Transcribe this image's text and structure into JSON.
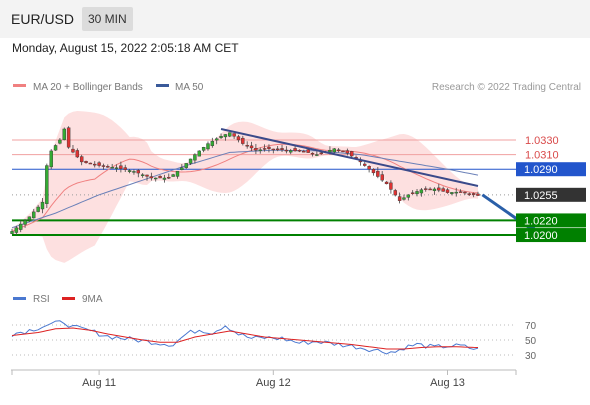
{
  "header": {
    "pair": "EUR/USD",
    "timeframe": "30 MIN"
  },
  "timestamp": "Monday, August 15, 2022 2:05:18 AM CET",
  "legend": {
    "items": [
      {
        "label": "MA 20 + Bollinger Bands",
        "color": "#f08080"
      },
      {
        "label": "MA 50",
        "color": "#3a5a9a"
      }
    ],
    "copyright": "Research © 2022 Trading Central"
  },
  "rsi_legend": {
    "items": [
      {
        "label": "RSI",
        "color": "#4a78d0"
      },
      {
        "label": "9MA",
        "color": "#dd2222"
      }
    ]
  },
  "colors": {
    "resistance": "#d94a4a",
    "pivot": "#2255cc",
    "support": "#008000",
    "current": "#333333",
    "trendline": "#3a4a8a",
    "band_fill": "#fcd8d8"
  },
  "chart_data": {
    "type": "line",
    "title": "EUR/USD",
    "x_ticks": [
      "Aug 11",
      "Aug 12",
      "Aug 13"
    ],
    "x_tick_index": [
      20,
      60,
      100
    ],
    "n_points": 108,
    "ylim": [
      1.017,
      1.036
    ],
    "levels": [
      {
        "value": 1.033,
        "label": "1.0330",
        "kind": "resistance"
      },
      {
        "value": 1.031,
        "label": "1.0310",
        "kind": "resistance"
      },
      {
        "value": 1.029,
        "label": "1.0290",
        "kind": "pivot"
      },
      {
        "value": 1.0255,
        "label": "1.0255",
        "kind": "current"
      },
      {
        "value": 1.022,
        "label": "1.0220",
        "kind": "support"
      },
      {
        "value": 1.02,
        "label": "1.0200",
        "kind": "support"
      }
    ],
    "price_anchors": [
      [
        0,
        1.0205
      ],
      [
        4,
        1.0225
      ],
      [
        7,
        1.0245
      ],
      [
        8,
        1.0295
      ],
      [
        9,
        1.0315
      ],
      [
        11,
        1.033
      ],
      [
        12,
        1.0345
      ],
      [
        13,
        1.032
      ],
      [
        16,
        1.03
      ],
      [
        20,
        1.0295
      ],
      [
        24,
        1.0292
      ],
      [
        28,
        1.0287
      ],
      [
        32,
        1.0278
      ],
      [
        36,
        1.0278
      ],
      [
        39,
        1.0292
      ],
      [
        42,
        1.031
      ],
      [
        45,
        1.0325
      ],
      [
        48,
        1.0335
      ],
      [
        50,
        1.034
      ],
      [
        53,
        1.0325
      ],
      [
        56,
        1.0316
      ],
      [
        59,
        1.0318
      ],
      [
        63,
        1.0316
      ],
      [
        67,
        1.0314
      ],
      [
        70,
        1.031
      ],
      [
        74,
        1.0318
      ],
      [
        77,
        1.0312
      ],
      [
        80,
        1.03
      ],
      [
        83,
        1.0285
      ],
      [
        86,
        1.027
      ],
      [
        89,
        1.0247
      ],
      [
        91,
        1.0255
      ],
      [
        94,
        1.0262
      ],
      [
        97,
        1.0263
      ],
      [
        100,
        1.0258
      ],
      [
        103,
        1.0259
      ],
      [
        107,
        1.0254
      ]
    ],
    "ma50_anchors": [
      [
        0,
        1.021
      ],
      [
        10,
        1.023
      ],
      [
        20,
        1.0255
      ],
      [
        30,
        1.0275
      ],
      [
        40,
        1.0295
      ],
      [
        50,
        1.0313
      ],
      [
        60,
        1.0316
      ],
      [
        70,
        1.0315
      ],
      [
        80,
        1.031
      ],
      [
        90,
        1.03
      ],
      [
        100,
        1.029
      ],
      [
        107,
        1.0282
      ]
    ],
    "trendline": {
      "from": [
        48,
        1.0345
      ],
      "to": [
        107,
        1.0267
      ]
    },
    "projection": {
      "from": [
        108,
        1.0255
      ],
      "to": [
        120,
        1.0205
      ]
    },
    "rsi": {
      "levels": [
        70,
        50,
        30
      ],
      "ylim": [
        18,
        82
      ],
      "rsi_anchors": [
        [
          0,
          58
        ],
        [
          4,
          63
        ],
        [
          8,
          70
        ],
        [
          10,
          72
        ],
        [
          12,
          74
        ],
        [
          14,
          67
        ],
        [
          18,
          62
        ],
        [
          22,
          55
        ],
        [
          26,
          52
        ],
        [
          30,
          49
        ],
        [
          34,
          46
        ],
        [
          37,
          44
        ],
        [
          40,
          58
        ],
        [
          43,
          64
        ],
        [
          46,
          60
        ],
        [
          49,
          70
        ],
        [
          52,
          58
        ],
        [
          55,
          52
        ],
        [
          58,
          53
        ],
        [
          62,
          52
        ],
        [
          66,
          46
        ],
        [
          70,
          48
        ],
        [
          74,
          45
        ],
        [
          78,
          42
        ],
        [
          82,
          38
        ],
        [
          85,
          35
        ],
        [
          88,
          34
        ],
        [
          90,
          40
        ],
        [
          93,
          44
        ],
        [
          97,
          40
        ],
        [
          100,
          42
        ],
        [
          103,
          42
        ],
        [
          107,
          37
        ]
      ],
      "ma9_anchors": [
        [
          0,
          56
        ],
        [
          6,
          60
        ],
        [
          10,
          65
        ],
        [
          14,
          66
        ],
        [
          18,
          63
        ],
        [
          22,
          58
        ],
        [
          26,
          54
        ],
        [
          30,
          50
        ],
        [
          34,
          47
        ],
        [
          38,
          47
        ],
        [
          42,
          54
        ],
        [
          46,
          58
        ],
        [
          50,
          62
        ],
        [
          54,
          58
        ],
        [
          58,
          54
        ],
        [
          62,
          52
        ],
        [
          66,
          50
        ],
        [
          70,
          48
        ],
        [
          74,
          46
        ],
        [
          78,
          44
        ],
        [
          82,
          41
        ],
        [
          86,
          38
        ],
        [
          90,
          38
        ],
        [
          94,
          40
        ],
        [
          98,
          41
        ],
        [
          102,
          41
        ],
        [
          107,
          40
        ]
      ]
    }
  }
}
